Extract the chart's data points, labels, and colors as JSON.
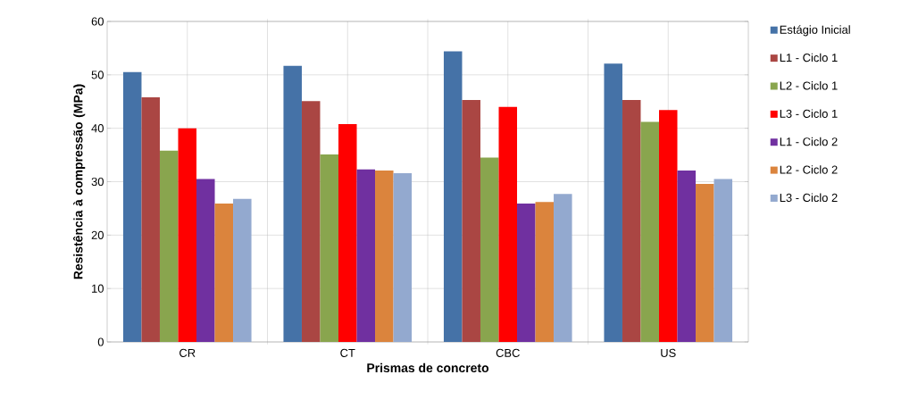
{
  "chart_data": {
    "type": "bar",
    "xlabel": "Prismas de concreto",
    "ylabel": "Resistência à compressão (MPa)",
    "categories": [
      "CR",
      "CT",
      "CBC",
      "US"
    ],
    "series": [
      {
        "name": "Estágio Inicial",
        "color": "#4572a7",
        "values": [
          50.5,
          51.7,
          54.4,
          52.1
        ]
      },
      {
        "name": "L1 - Ciclo 1",
        "color": "#aa4643",
        "values": [
          45.8,
          45.1,
          45.3,
          45.3
        ]
      },
      {
        "name": "L2 - Ciclo 1",
        "color": "#89a54e",
        "values": [
          35.8,
          35.1,
          34.5,
          41.2
        ]
      },
      {
        "name": "L3 - Ciclo 1",
        "color": "#ff0000",
        "values": [
          40.0,
          40.8,
          44.0,
          43.4
        ]
      },
      {
        "name": "L1 - Ciclo 2",
        "color": "#7030a0",
        "values": [
          30.5,
          32.3,
          25.9,
          32.1
        ]
      },
      {
        "name": "L2 - Ciclo 2",
        "color": "#db843d",
        "values": [
          25.9,
          32.1,
          26.2,
          29.6
        ]
      },
      {
        "name": "L3 - Ciclo 2",
        "color": "#93a9cf",
        "values": [
          26.8,
          31.6,
          27.7,
          30.5
        ]
      }
    ],
    "ylim": [
      0,
      60
    ],
    "yticks": [
      0,
      10,
      20,
      30,
      40,
      50,
      60
    ],
    "grid": true,
    "legend": "right"
  }
}
